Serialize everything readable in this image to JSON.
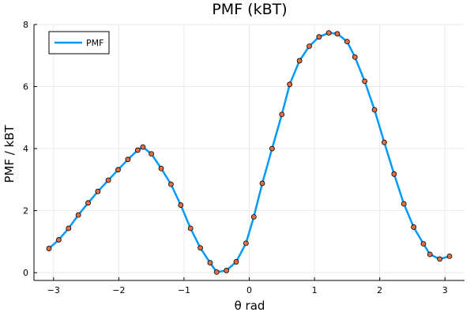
{
  "chart_data": {
    "type": "line",
    "title": "PMF (kBT)",
    "xlabel": "θ rad",
    "ylabel": "PMF / kBT",
    "xlim": [
      -3.3,
      3.3
    ],
    "ylim": [
      -0.25,
      8.0
    ],
    "xticks": [
      -3,
      -2,
      -1,
      0,
      1,
      2,
      3
    ],
    "yticks": [
      0,
      2,
      4,
      6,
      8
    ],
    "grid": true,
    "legend": {
      "position": "top-left",
      "entries": [
        "PMF"
      ]
    },
    "series": [
      {
        "name": "PMF",
        "color": "#009af9",
        "style": "line",
        "x": [
          -3.07,
          -2.92,
          -2.77,
          -2.62,
          -2.47,
          -2.32,
          -2.16,
          -2.01,
          -1.86,
          -1.71,
          -1.63,
          -1.5,
          -1.35,
          -1.2,
          -1.05,
          -0.9,
          -0.75,
          -0.6,
          -0.5,
          -0.35,
          -0.2,
          -0.05,
          0.07,
          0.2,
          0.35,
          0.5,
          0.62,
          0.77,
          0.92,
          1.07,
          1.22,
          1.35,
          1.5,
          1.62,
          1.77,
          1.92,
          2.07,
          2.22,
          2.37,
          2.52,
          2.67,
          2.77,
          2.92,
          3.07
        ],
        "y": [
          0.78,
          1.06,
          1.43,
          1.86,
          2.25,
          2.62,
          2.98,
          3.32,
          3.65,
          3.95,
          4.05,
          3.83,
          3.36,
          2.85,
          2.18,
          1.43,
          0.8,
          0.32,
          0.02,
          0.07,
          0.35,
          0.95,
          1.8,
          2.88,
          4.0,
          5.1,
          6.07,
          6.83,
          7.3,
          7.6,
          7.73,
          7.7,
          7.45,
          6.95,
          6.17,
          5.25,
          4.2,
          3.18,
          2.22,
          1.47,
          0.93,
          0.59,
          0.44,
          0.53
        ]
      },
      {
        "name": "",
        "color": "#e26f46",
        "style": "markers",
        "x": [
          -3.07,
          -2.92,
          -2.77,
          -2.62,
          -2.47,
          -2.32,
          -2.16,
          -2.01,
          -1.86,
          -1.71,
          -1.63,
          -1.5,
          -1.35,
          -1.2,
          -1.05,
          -0.9,
          -0.75,
          -0.6,
          -0.5,
          -0.35,
          -0.2,
          -0.05,
          0.07,
          0.2,
          0.35,
          0.5,
          0.62,
          0.77,
          0.92,
          1.07,
          1.22,
          1.35,
          1.5,
          1.62,
          1.77,
          1.92,
          2.07,
          2.22,
          2.37,
          2.52,
          2.67,
          2.77,
          2.92,
          3.07
        ],
        "y": [
          0.78,
          1.06,
          1.43,
          1.86,
          2.25,
          2.62,
          2.98,
          3.32,
          3.65,
          3.95,
          4.05,
          3.83,
          3.36,
          2.85,
          2.18,
          1.43,
          0.8,
          0.32,
          0.02,
          0.07,
          0.35,
          0.95,
          1.8,
          2.88,
          4.0,
          5.1,
          6.07,
          6.83,
          7.3,
          7.6,
          7.73,
          7.7,
          7.45,
          6.95,
          6.17,
          5.25,
          4.2,
          3.18,
          2.22,
          1.47,
          0.93,
          0.59,
          0.44,
          0.53
        ]
      }
    ]
  }
}
